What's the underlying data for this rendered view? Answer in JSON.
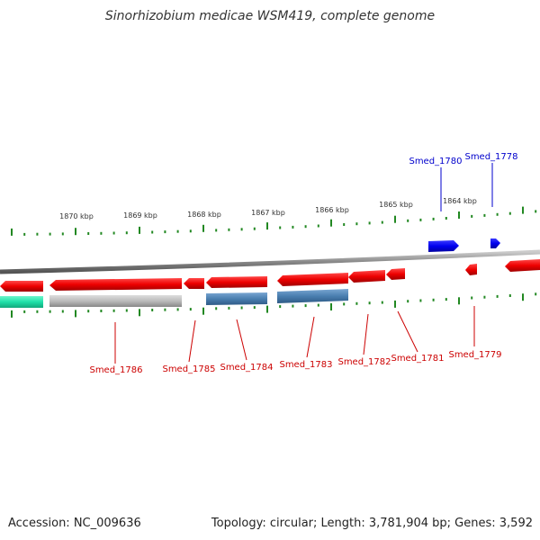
{
  "title": "Sinorhizobium medicae WSM419, complete genome",
  "footer": {
    "accession": "Accession: NC_009636",
    "stats": "Topology: circular; Length: 3,781,904 bp; Genes: 3,592"
  },
  "scale_labels": [
    "1870 kbp",
    "1869 kbp",
    "1868 kbp",
    "1867 kbp",
    "1866 kbp",
    "1865 kbp",
    "1864 kbp"
  ],
  "colors": {
    "forward_gene": "#0000ff",
    "reverse_gene": "#ff0000",
    "cds": "#4a7fb0",
    "rna": "#2ee6b0",
    "other": "#b8b8b8",
    "tick": "#228822",
    "backbone": "#888888"
  },
  "gene_labels": {
    "smed_1780": "Smed_1780",
    "smed_1778": "Smed_1778",
    "smed_1786": "Smed_1786",
    "smed_1785": "Smed_1785",
    "smed_1784": "Smed_1784",
    "smed_1783": "Smed_1783",
    "smed_1782": "Smed_1782",
    "smed_1781": "Smed_1781",
    "smed_1779": "Smed_1779"
  }
}
